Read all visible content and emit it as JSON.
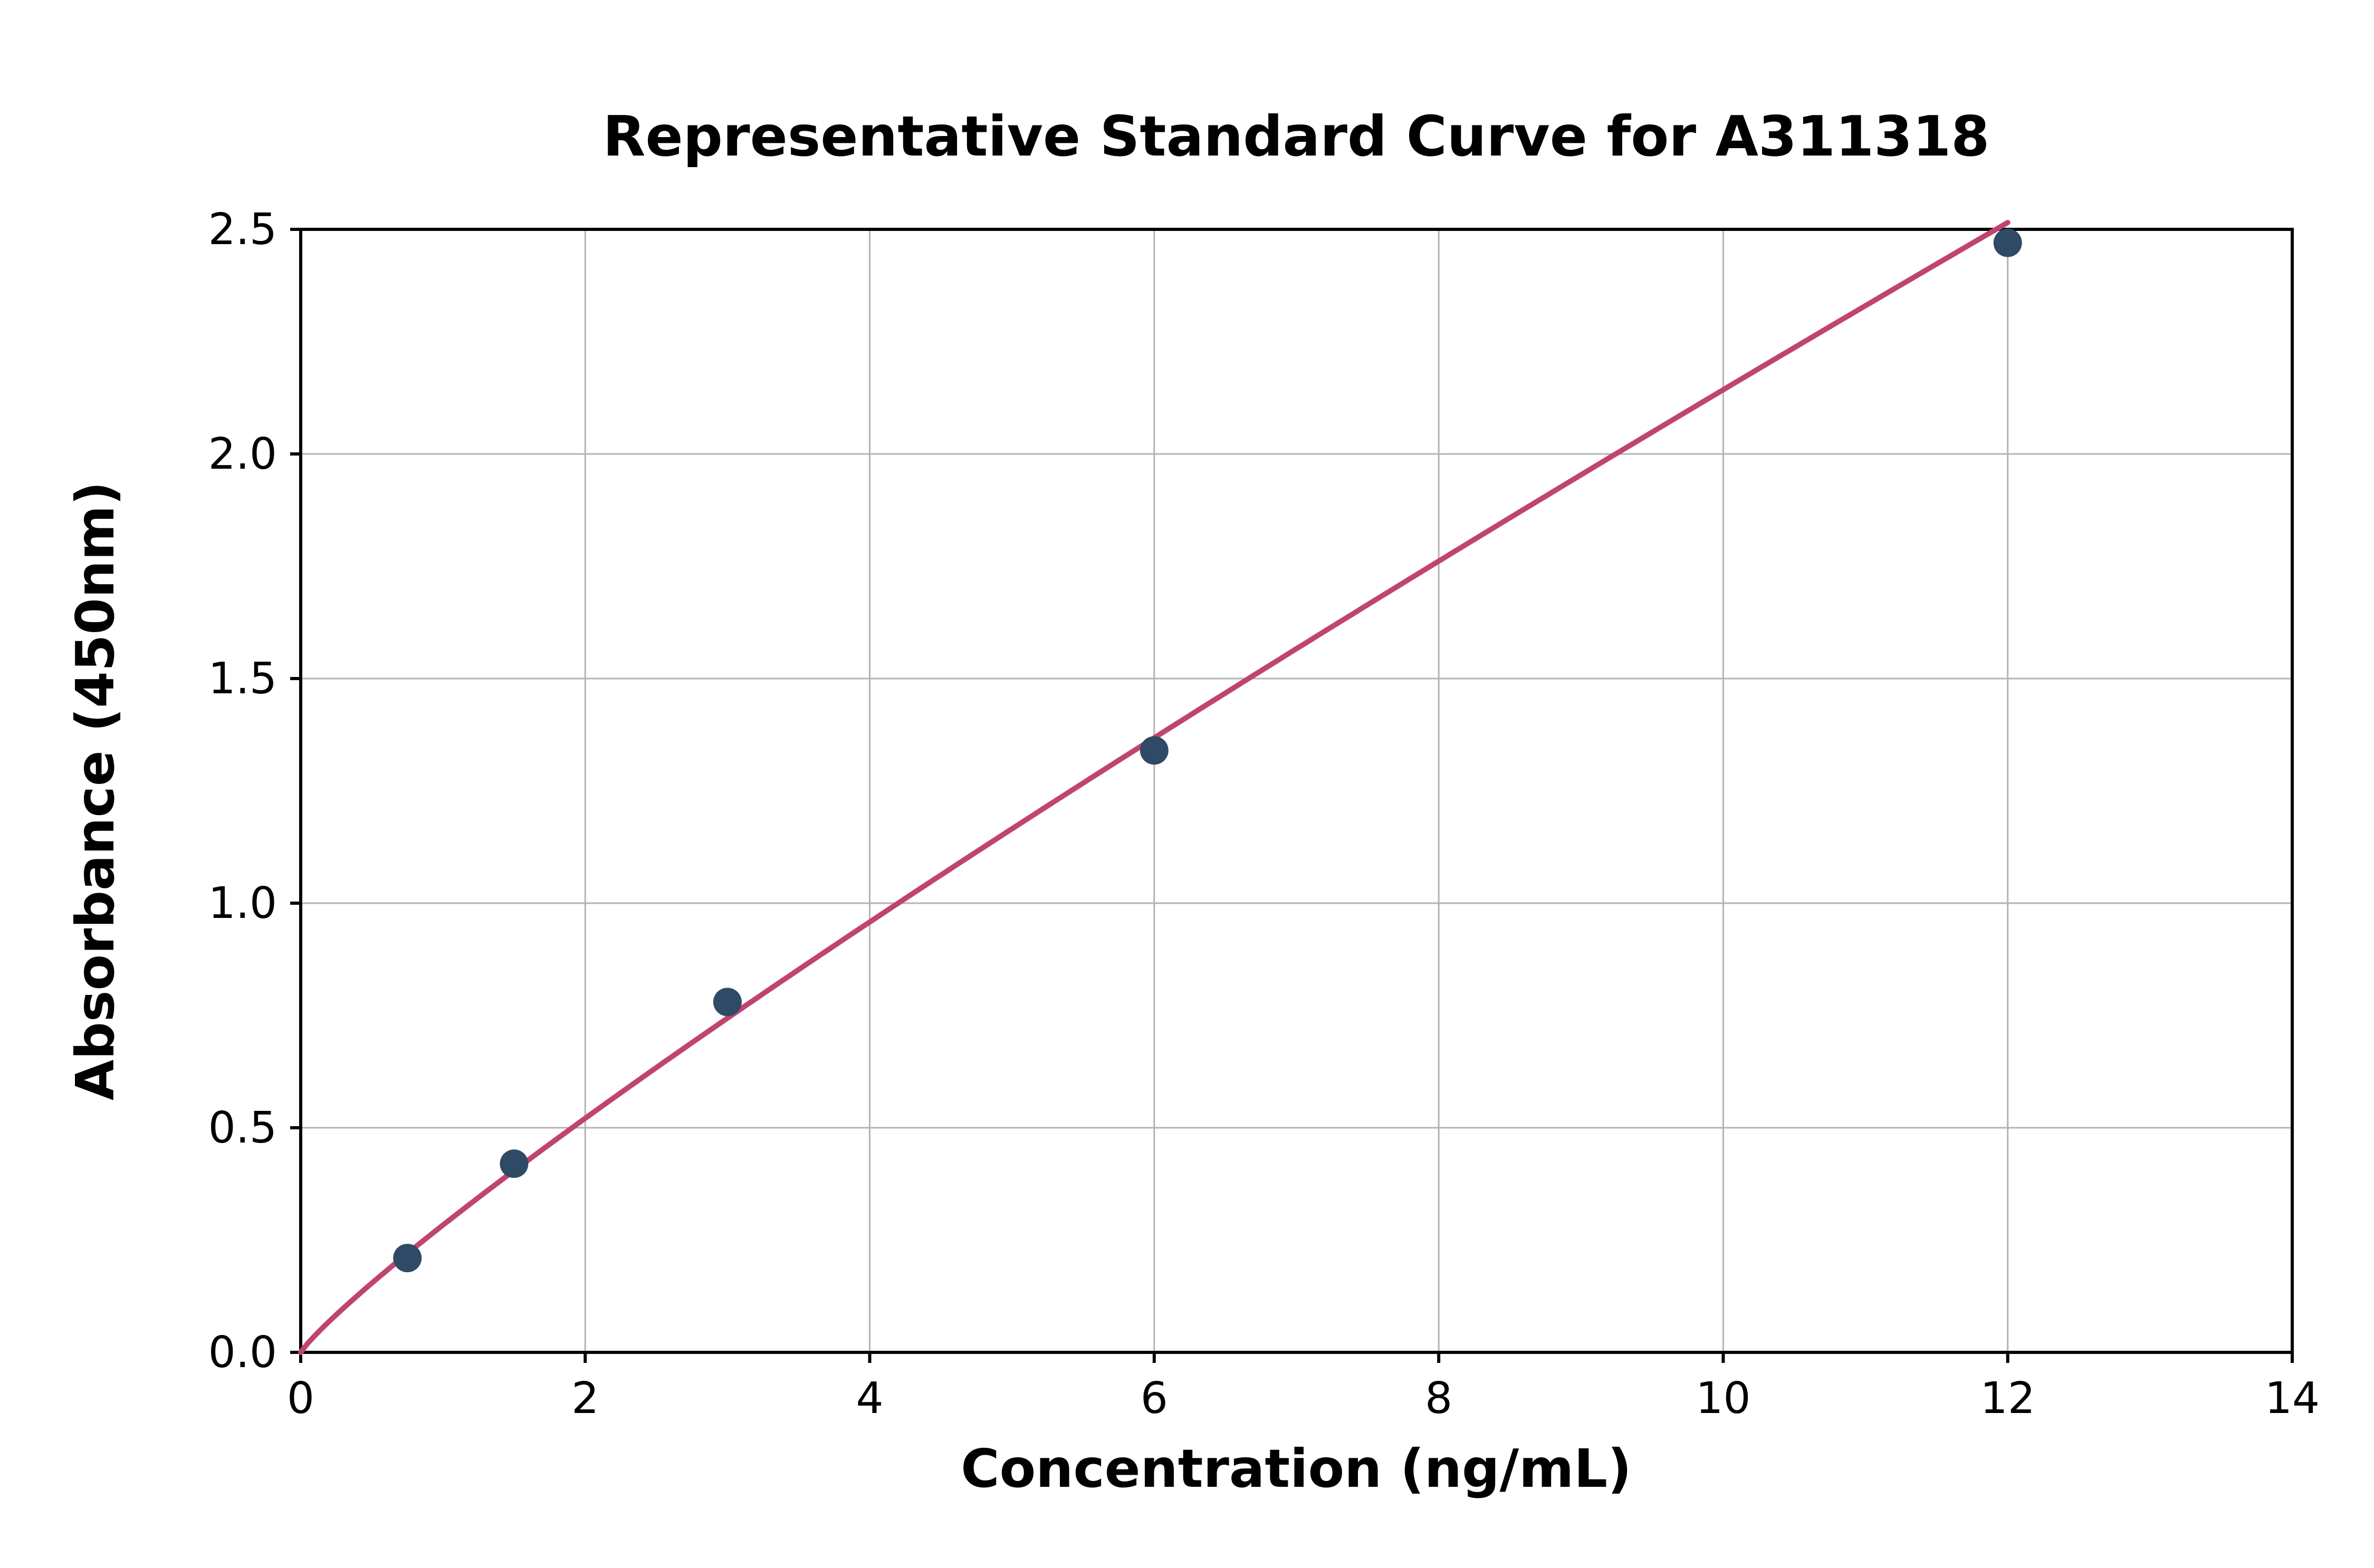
{
  "chart_data": {
    "type": "scatter",
    "title": "Representative Standard Curve for A311318",
    "xlabel": "Concentration (ng/mL)",
    "ylabel": "Absorbance (450nm)",
    "xlim": [
      0,
      14
    ],
    "ylim": [
      0,
      2.5
    ],
    "xticks": [
      0,
      2,
      4,
      6,
      8,
      10,
      12,
      14
    ],
    "yticks": [
      0.0,
      0.5,
      1.0,
      1.5,
      2.0,
      2.5
    ],
    "grid": true,
    "legend": "none",
    "points": [
      {
        "x": 0.75,
        "y": 0.21
      },
      {
        "x": 1.5,
        "y": 0.42
      },
      {
        "x": 3,
        "y": 0.78
      },
      {
        "x": 6,
        "y": 1.34
      },
      {
        "x": 12,
        "y": 2.47
      }
    ],
    "fit_curve": {
      "type": "power",
      "a": 0.2834,
      "b": 0.8786,
      "x_start": 0,
      "x_end": 12
    },
    "colors": {
      "curve": "#c0456e",
      "point": "#2e4a66",
      "grid": "#b3b3b3",
      "axis": "#000000",
      "background": "#ffffff"
    }
  }
}
